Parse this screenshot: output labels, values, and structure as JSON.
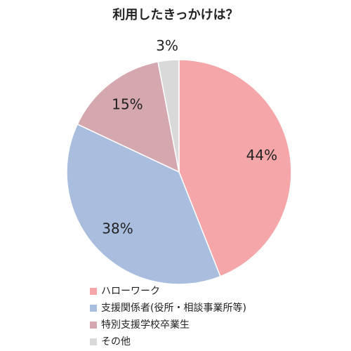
{
  "chart_data": {
    "type": "pie",
    "title": "利用したきっかけは？",
    "categories": [
      "ハローワーク",
      "支援関係者(役所・相談事業所等)",
      "特別支援学校卒業生",
      "その他"
    ],
    "values": [
      44,
      38,
      15,
      3
    ],
    "value_labels": [
      "44%",
      "38%",
      "15%",
      "3%"
    ],
    "colors": [
      "#f4a6a8",
      "#a9bedf",
      "#d5a8b0",
      "#d9d9d9"
    ],
    "legend": "bottom"
  }
}
